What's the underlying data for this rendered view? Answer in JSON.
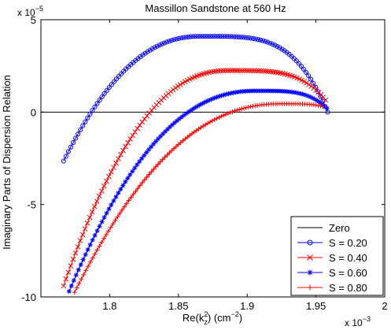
{
  "chart_data": {
    "type": "line",
    "title": "Massillon Sandstone at 560 Hz",
    "xlabel": {
      "base": "Re(k",
      "sup": "2",
      "sub": "z",
      "mid": ") (cm",
      "sup2": "−2",
      "end": ")"
    },
    "ylabel": "Imaginary Parts of Dispersion Relation",
    "x_multiplier": {
      "base": "x 10",
      "exp": "−3"
    },
    "y_multiplier": {
      "base": "x 10",
      "exp": "−5"
    },
    "xlim": [
      1.75,
      2.0
    ],
    "ylim": [
      -10,
      5
    ],
    "x_ticks": [
      1.8,
      1.85,
      1.9,
      1.95,
      2.0
    ],
    "x_tick_labels": [
      "1.8",
      "1.85",
      "1.9",
      "1.95",
      "2"
    ],
    "y_ticks": [
      5,
      0,
      -5,
      -10
    ],
    "y_tick_labels": [
      "5",
      "0",
      "-5",
      "-10"
    ],
    "grid": false,
    "legend_position": "bottom-right",
    "reference_line": {
      "name": "Zero",
      "y": 0,
      "color": "#000000"
    },
    "series": [
      {
        "name": "S = 0.20",
        "marker": "circle",
        "color": "#0000ff",
        "x_start": 1.7665,
        "x_end": 1.9585,
        "peak_x": 1.866,
        "peak_y": 4.1,
        "start_y": -2.65,
        "end_y": 0.0
      },
      {
        "name": "S = 0.40",
        "marker": "x",
        "color": "#ff0000",
        "x_start": 1.7665,
        "x_end": 1.957,
        "peak_x": 1.886,
        "peak_y": 2.25,
        "start_y": -9.4,
        "end_y": 0.65
      },
      {
        "name": "S = 0.60",
        "marker": "star",
        "color": "#0000ff",
        "x_start": 1.7705,
        "x_end": 1.958,
        "peak_x": 1.906,
        "peak_y": 1.15,
        "start_y": -9.7,
        "end_y": 0.2
      },
      {
        "name": "S = 0.80",
        "marker": "plus",
        "color": "#ff0000",
        "x_start": 1.7745,
        "x_end": 1.955,
        "peak_x": 1.925,
        "peak_y": 0.45,
        "start_y": -9.75,
        "end_y": 0.3
      }
    ]
  }
}
